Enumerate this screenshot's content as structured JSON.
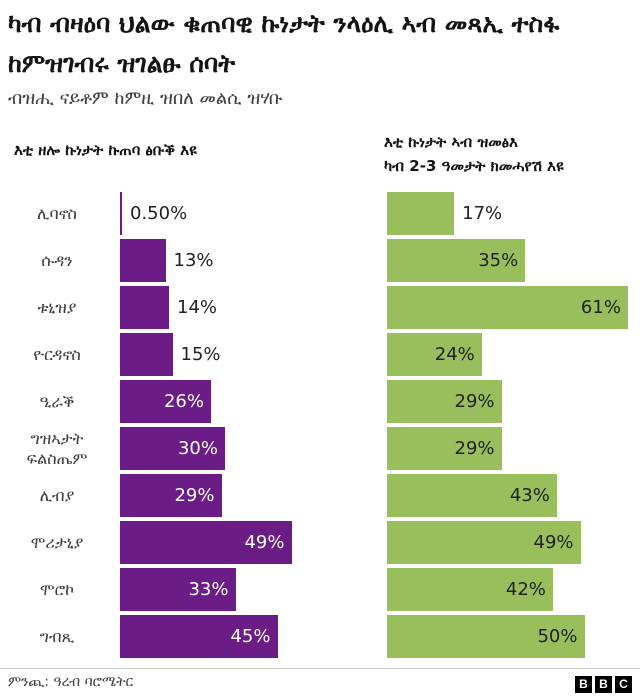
{
  "title": "ካብ ብዛዕባ ህልው ቁጠባዊ ኩነታት ንላዕሊ ኣብ መጻኢ ተስፋ ከምዝገብሩ ዝገልፁ ሰባት",
  "subtitle": "ብዝሒ ናይቶም ከምዚ ዝበለ መልሲ ዝሃቡ",
  "source": "ምንጪ: ዓረብ ባሮሜትር",
  "logo_letters": [
    "B",
    "B",
    "C"
  ],
  "colors": {
    "left": "#6c1c87",
    "right": "#98bf5c"
  },
  "chart_data": [
    {
      "type": "bar",
      "title_lines": [
        "እቲ ዘሎ ኩነታት ኩጠባ ፅቡቕ እዩ"
      ],
      "categories": [
        [
          "ሊባኖስ"
        ],
        [
          "ሱዳን"
        ],
        [
          "ቱኒዝያ"
        ],
        [
          "ዮርዳኖስ"
        ],
        [
          "ዒራቕ"
        ],
        [
          "ግዝኣታት",
          "ፍልስጤም"
        ],
        [
          "ሊብያ"
        ],
        [
          "ሞሪታኒያ"
        ],
        [
          "ሞሮኮ"
        ],
        [
          "ግብጺ"
        ]
      ],
      "values": [
        0.5,
        13,
        14,
        15,
        26,
        30,
        29,
        49,
        33,
        45
      ],
      "labels": [
        "0.50%",
        "13%",
        "14%",
        "15%",
        "26%",
        "30%",
        "29%",
        "49%",
        "33%",
        "45%"
      ]
    },
    {
      "type": "bar",
      "title_lines": [
        "እቲ ኩነታት ኣብ ዝመፅእ",
        "ካብ 2-3 ዓመታት ክመሓየሽ እዩ"
      ],
      "values": [
        17,
        35,
        61,
        24,
        29,
        29,
        43,
        49,
        42,
        50
      ],
      "labels": [
        "17%",
        "35%",
        "61%",
        "24%",
        "29%",
        "29%",
        "43%",
        "49%",
        "42%",
        "50%"
      ]
    }
  ]
}
